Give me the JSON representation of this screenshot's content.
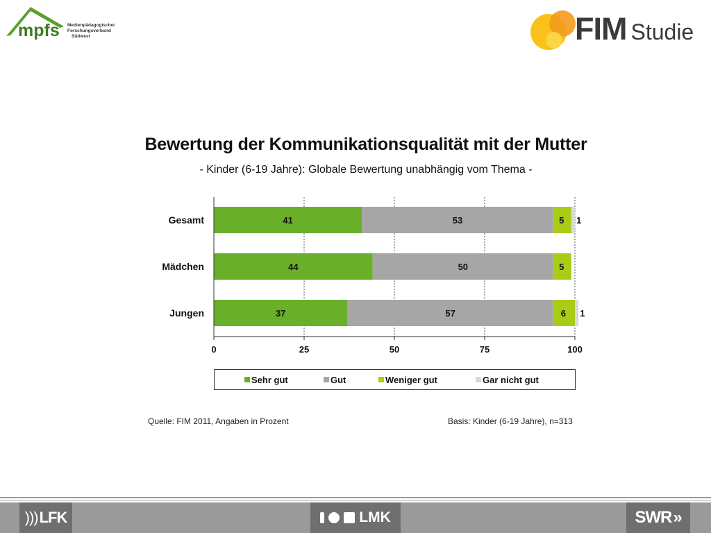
{
  "logos": {
    "left": {
      "name": "mpfs",
      "org_lines": [
        "Medienpädagogischer",
        "Forschungsverbund",
        "Südwest"
      ]
    },
    "right": {
      "name": "FIM",
      "suffix": "Studie"
    }
  },
  "header": {
    "title": "Bewertung der Kommunikationsqualität mit der Mutter",
    "subtitle": "- Kinder (6-19 Jahre): Globale Bewertung unabhängig vom Thema -"
  },
  "chart_data": {
    "type": "bar",
    "orientation": "horizontal",
    "stacked": true,
    "categories": [
      "Gesamt",
      "Mädchen",
      "Jungen"
    ],
    "series": [
      {
        "name": "Sehr gut",
        "color": "#6aaf2a",
        "values": [
          41,
          44,
          37
        ],
        "labels": [
          "41",
          "44",
          "37"
        ]
      },
      {
        "name": "Gut",
        "color": "#a6a6a6",
        "values": [
          53,
          50,
          57
        ],
        "labels": [
          "53",
          "50",
          "57"
        ]
      },
      {
        "name": "Weniger gut",
        "color": "#a9cc17",
        "values": [
          5,
          5,
          6
        ],
        "labels": [
          "5",
          "5",
          "6"
        ]
      },
      {
        "name": "Gar nicht  gut",
        "color": "#d9d9d9",
        "values": [
          1,
          0,
          1
        ],
        "labels": [
          "1",
          "",
          "1"
        ]
      }
    ],
    "xlim": [
      0,
      100
    ],
    "xticks": [
      0,
      25,
      50,
      75,
      100
    ],
    "grid": "vertical dashed",
    "legend": "bottom"
  },
  "footnotes": {
    "source": "Quelle: FIM 2011,  Angaben in Prozent",
    "basis": "Basis: Kinder (6-19 Jahre), n=313"
  },
  "footer": {
    "logos": [
      "LFK",
      "LMK",
      "SWR"
    ]
  }
}
